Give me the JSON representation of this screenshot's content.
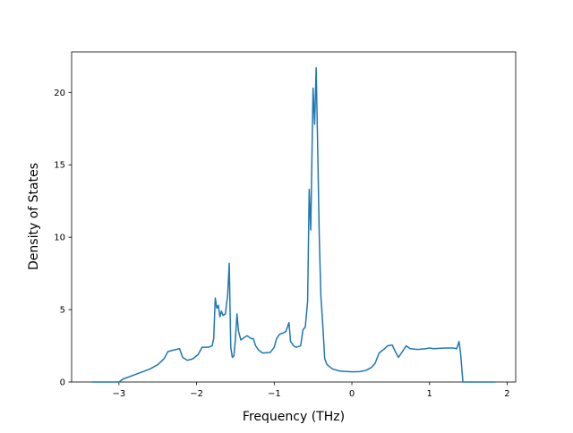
{
  "chart_data": {
    "type": "line",
    "x_label": "Frequency (THz)",
    "y_label": "Density of States",
    "color": "#1f77b4",
    "x": [
      -3.35,
      -3.0,
      -2.95,
      -2.8,
      -2.6,
      -2.5,
      -2.42,
      -2.37,
      -2.3,
      -2.22,
      -2.18,
      -2.12,
      -2.05,
      -1.98,
      -1.93,
      -1.85,
      -1.8,
      -1.78,
      -1.76,
      -1.74,
      -1.72,
      -1.7,
      -1.68,
      -1.66,
      -1.63,
      -1.6,
      -1.58,
      -1.56,
      -1.54,
      -1.52,
      -1.5,
      -1.48,
      -1.46,
      -1.43,
      -1.38,
      -1.35,
      -1.3,
      -1.27,
      -1.24,
      -1.2,
      -1.15,
      -1.05,
      -1.0,
      -0.97,
      -0.93,
      -0.88,
      -0.85,
      -0.81,
      -0.79,
      -0.75,
      -0.72,
      -0.66,
      -0.63,
      -0.6,
      -0.57,
      -0.55,
      -0.53,
      -0.5,
      -0.48,
      -0.46,
      -0.44,
      -0.42,
      -0.4,
      -0.37,
      -0.35,
      -0.32,
      -0.25,
      -0.15,
      0.0,
      0.1,
      0.18,
      0.25,
      0.3,
      0.35,
      0.42,
      0.46,
      0.52,
      0.55,
      0.6,
      0.65,
      0.7,
      0.75,
      0.85,
      0.95,
      1.0,
      1.05,
      1.2,
      1.3,
      1.35,
      1.38,
      1.4,
      1.43,
      1.85
    ],
    "values": [
      0,
      0,
      0.2,
      0.5,
      0.9,
      1.2,
      1.6,
      2.1,
      2.2,
      2.3,
      1.7,
      1.5,
      1.6,
      1.9,
      2.4,
      2.4,
      2.5,
      3.0,
      5.8,
      5.1,
      5.3,
      4.5,
      4.9,
      4.6,
      4.7,
      6.0,
      8.2,
      2.4,
      1.7,
      1.8,
      3.0,
      4.7,
      3.5,
      2.9,
      3.1,
      3.2,
      3.0,
      3.0,
      2.5,
      2.2,
      2.0,
      2.05,
      2.4,
      3.0,
      3.3,
      3.4,
      3.5,
      4.1,
      2.8,
      2.5,
      2.4,
      2.5,
      3.6,
      3.8,
      5.6,
      13.3,
      10.5,
      20.3,
      17.8,
      21.7,
      16.0,
      10.0,
      6.0,
      3.5,
      1.6,
      1.2,
      0.9,
      0.75,
      0.7,
      0.72,
      0.8,
      1.0,
      1.3,
      2.0,
      2.3,
      2.5,
      2.55,
      2.2,
      1.7,
      2.1,
      2.5,
      2.3,
      2.25,
      2.3,
      2.35,
      2.3,
      2.35,
      2.35,
      2.3,
      2.8,
      2.0,
      0,
      0
    ],
    "xlim": [
      -3.61,
      2.11
    ],
    "ylim": [
      0,
      22.8
    ],
    "xticks": [
      {
        "value": -3,
        "label": "−3"
      },
      {
        "value": -2,
        "label": "−2"
      },
      {
        "value": -1,
        "label": "−1"
      },
      0,
      1,
      2
    ],
    "yticks": [
      0,
      5,
      10,
      15,
      20
    ]
  }
}
